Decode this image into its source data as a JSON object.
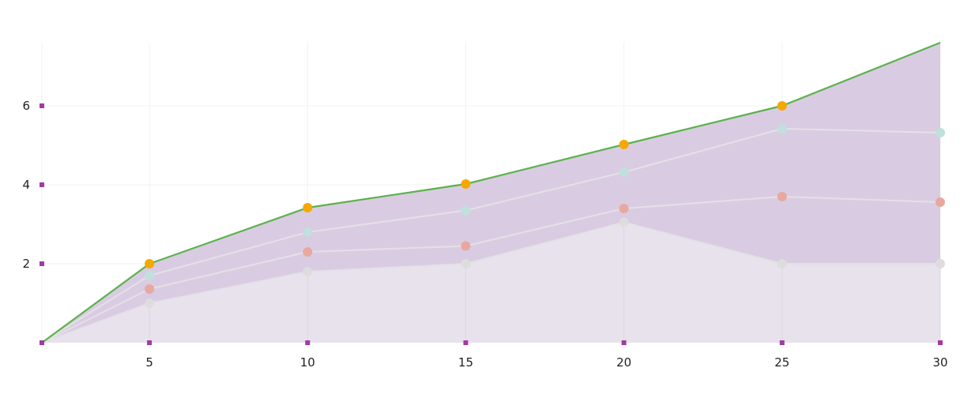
{
  "chart_data": {
    "type": "area",
    "x": [
      1.6,
      5,
      10,
      15,
      20,
      25,
      30
    ],
    "xticks": [
      5,
      10,
      15,
      20,
      25,
      30
    ],
    "yticks": [
      2,
      4,
      6
    ],
    "xlim": [
      1.6,
      30
    ],
    "ylim": [
      0,
      7.6
    ],
    "grid": true,
    "legend": "none",
    "title": "",
    "xlabel": "",
    "ylabel": "",
    "series": [
      {
        "values": [
          0,
          1.0,
          1.8,
          2.0,
          3.05,
          2.0,
          2.0
        ],
        "color": "#dddddd"
      },
      {
        "values": [
          0,
          1.36,
          2.3,
          2.45,
          3.4,
          3.7,
          3.56
        ],
        "color": "#e8a8a0"
      },
      {
        "values": [
          0,
          1.7,
          2.8,
          3.35,
          4.32,
          5.42,
          5.32
        ],
        "color": "#bfe0dc"
      },
      {
        "values": [
          0,
          2.0,
          3.42,
          4.02,
          5.02,
          6.0,
          7.6
        ],
        "color": "#f5a800"
      }
    ],
    "colors": {
      "upper_band": "#d9cce2",
      "lower_band": "#e8e2ec",
      "top_line": "#5cb24c",
      "inner_line": "#e4e0e6",
      "tick_marker": "#a13aa3",
      "grid": "#f2f2f2"
    }
  }
}
